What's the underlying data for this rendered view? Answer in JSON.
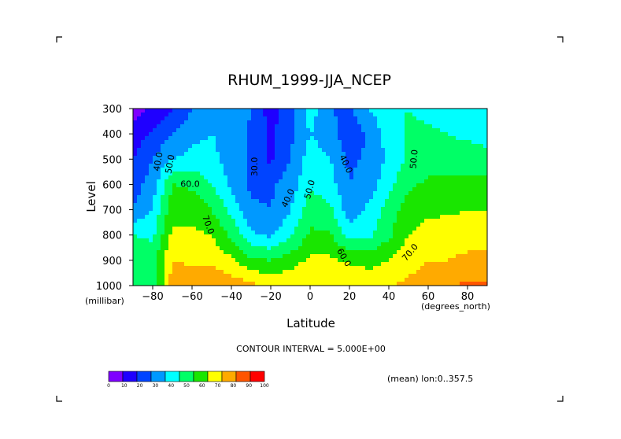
{
  "chart_data": {
    "type": "heatmap",
    "title": "RHUM_1999-JJA_NCEP",
    "xlabel": "Latitude",
    "x_unit": "(degrees_north)",
    "ylabel": "Level",
    "y_unit": "(millibar)",
    "xlim": [
      -90,
      90
    ],
    "ylim": [
      1000,
      300
    ],
    "x_ticks": [
      -80,
      -60,
      -40,
      -20,
      0,
      20,
      40,
      60,
      80
    ],
    "x_tick_labels": [
      "−80",
      "−60",
      "−40",
      "−20",
      "0",
      "20",
      "40",
      "60",
      "80"
    ],
    "y_ticks": [
      300,
      400,
      500,
      600,
      700,
      800,
      900,
      1000
    ],
    "y_tick_labels": [
      "300",
      "400",
      "500",
      "600",
      "700",
      "800",
      "900",
      "1000"
    ],
    "contour_interval_text": "CONTOUR INTERVAL = 5.000E+00",
    "mean_text": "(mean) lon:0..357.5",
    "colorbar": {
      "labels": [
        "0",
        "10",
        "20",
        "30",
        "40",
        "50",
        "60",
        "70",
        "80",
        "90",
        "100"
      ],
      "colors": [
        "#7f00ff",
        "#1f00ff",
        "#0044ff",
        "#0099ff",
        "#00ffff",
        "#00ff66",
        "#19e600",
        "#ffff00",
        "#ffaa00",
        "#ff5500",
        "#ff0000"
      ]
    },
    "contour_labels": [
      {
        "text": "40.0",
        "lat": -77,
        "p": 510,
        "rot": -80
      },
      {
        "text": "50.0",
        "lat": -71,
        "p": 520,
        "rot": -80
      },
      {
        "text": "60.0",
        "lat": -61,
        "p": 600,
        "rot": 0
      },
      {
        "text": "70.0",
        "lat": -52,
        "p": 760,
        "rot": 70
      },
      {
        "text": "30.0",
        "lat": -28,
        "p": 530,
        "rot": -90
      },
      {
        "text": "40.0",
        "lat": -11,
        "p": 655,
        "rot": -65
      },
      {
        "text": "50.0",
        "lat": 0,
        "p": 620,
        "rot": -75
      },
      {
        "text": "40.0",
        "lat": 18,
        "p": 520,
        "rot": 65
      },
      {
        "text": "50.0",
        "lat": 53,
        "p": 500,
        "rot": -85
      },
      {
        "text": "60.0",
        "lat": 17,
        "p": 890,
        "rot": 60
      },
      {
        "text": "70.0",
        "lat": 51,
        "p": 870,
        "rot": -50
      }
    ],
    "levels": [
      300,
      400,
      500,
      600,
      700,
      800,
      900,
      1000
    ],
    "latitudes": [
      -90,
      -80,
      -70,
      -60,
      -50,
      -40,
      -30,
      -20,
      -10,
      0,
      10,
      20,
      30,
      40,
      50,
      60,
      70,
      80,
      90
    ],
    "values": [
      [
        5,
        12,
        18,
        30,
        38,
        38,
        30,
        15,
        25,
        45,
        30,
        28,
        40,
        48,
        50,
        47,
        45,
        43,
        40
      ],
      [
        15,
        22,
        30,
        38,
        40,
        38,
        28,
        18,
        28,
        40,
        35,
        22,
        32,
        45,
        52,
        52,
        50,
        48,
        45
      ],
      [
        20,
        30,
        40,
        43,
        42,
        36,
        28,
        18,
        30,
        45,
        40,
        28,
        32,
        42,
        52,
        55,
        55,
        55,
        55
      ],
      [
        25,
        35,
        60,
        58,
        50,
        38,
        28,
        28,
        35,
        48,
        45,
        30,
        35,
        47,
        58,
        62,
        62,
        62,
        62
      ],
      [
        30,
        40,
        67,
        67,
        60,
        47,
        32,
        30,
        40,
        55,
        52,
        35,
        42,
        55,
        65,
        68,
        68,
        70,
        70
      ],
      [
        50,
        48,
        72,
        72,
        70,
        58,
        42,
        38,
        48,
        62,
        62,
        45,
        48,
        58,
        70,
        74,
        76,
        76,
        76
      ],
      [
        60,
        56,
        80,
        78,
        78,
        72,
        62,
        60,
        65,
        72,
        72,
        68,
        66,
        70,
        76,
        80,
        80,
        82,
        82
      ],
      [
        60,
        55,
        85,
        88,
        90,
        86,
        82,
        78,
        78,
        80,
        80,
        80,
        78,
        80,
        82,
        85,
        88,
        92,
        92
      ]
    ]
  }
}
